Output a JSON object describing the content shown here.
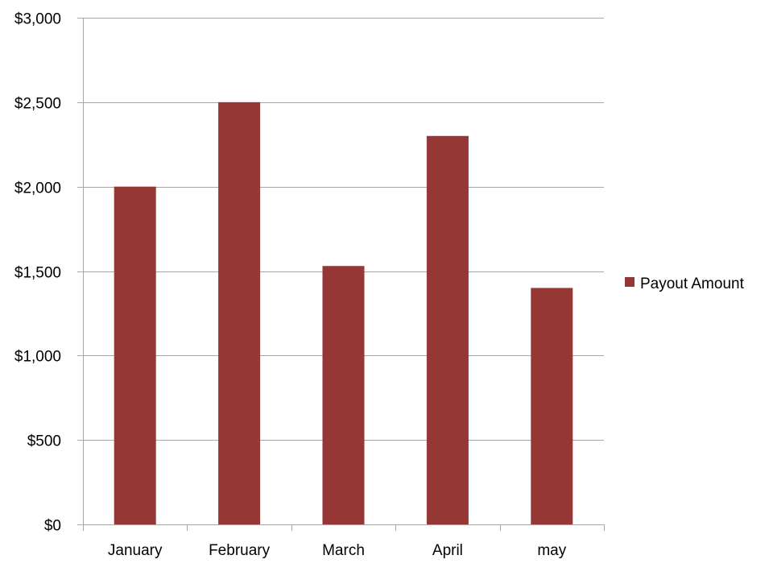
{
  "chart_data": {
    "type": "bar",
    "categories": [
      "January",
      "February",
      "March",
      "April",
      "may"
    ],
    "series": [
      {
        "name": "Payout Amount",
        "values": [
          2000,
          2500,
          1530,
          2300,
          1400
        ],
        "color": "#953735"
      }
    ],
    "ylim": [
      0,
      3000
    ],
    "y_ticks": [
      0,
      500,
      1000,
      1500,
      2000,
      2500,
      3000
    ],
    "y_tick_labels": [
      "$0",
      "$500",
      "$1,000",
      "$1,500",
      "$2,000",
      "$2,500",
      "$3,000"
    ],
    "title": "",
    "xlabel": "",
    "ylabel": "",
    "grid": true,
    "legend_position": "right",
    "gridline_color": "#a6a6a6"
  }
}
